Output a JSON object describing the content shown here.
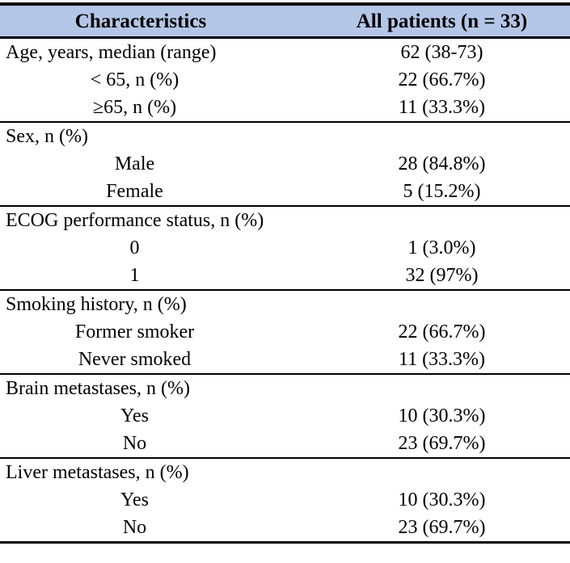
{
  "table": {
    "columns": [
      "Characteristics",
      "All patients (n = 33)"
    ],
    "rows": [
      {
        "label": "Age, years, median (range)",
        "value": "62 (38-73)"
      },
      {
        "label": "< 65, n (%)",
        "value": "22 (66.7%)"
      },
      {
        "label": "≥65, n (%)",
        "value": "11 (33.3%)"
      },
      {
        "label": "Sex, n (%)",
        "value": ""
      },
      {
        "label": "Male",
        "value": "28 (84.8%)"
      },
      {
        "label": "Female",
        "value": "5 (15.2%)"
      },
      {
        "label": "ECOG performance status, n (%)",
        "value": ""
      },
      {
        "label": "0",
        "value": "1 (3.0%)"
      },
      {
        "label": "1",
        "value": "32 (97%)"
      },
      {
        "label": "Smoking history, n (%)",
        "value": ""
      },
      {
        "label": "Former smoker",
        "value": "22 (66.7%)"
      },
      {
        "label": "Never smoked",
        "value": "11 (33.3%)"
      },
      {
        "label": "Brain metastases, n (%)",
        "value": ""
      },
      {
        "label": "Yes",
        "value": "10 (30.3%)"
      },
      {
        "label": "No",
        "value": "23 (69.7%)"
      },
      {
        "label": "Liver metastases, n (%)",
        "value": ""
      },
      {
        "label": "Yes",
        "value": "10 (30.3%)"
      },
      {
        "label": "No",
        "value": "23 (69.7%)"
      }
    ]
  },
  "colors": {
    "header_background": "#b4c6e7",
    "border": "#000000",
    "text": "#000000"
  }
}
